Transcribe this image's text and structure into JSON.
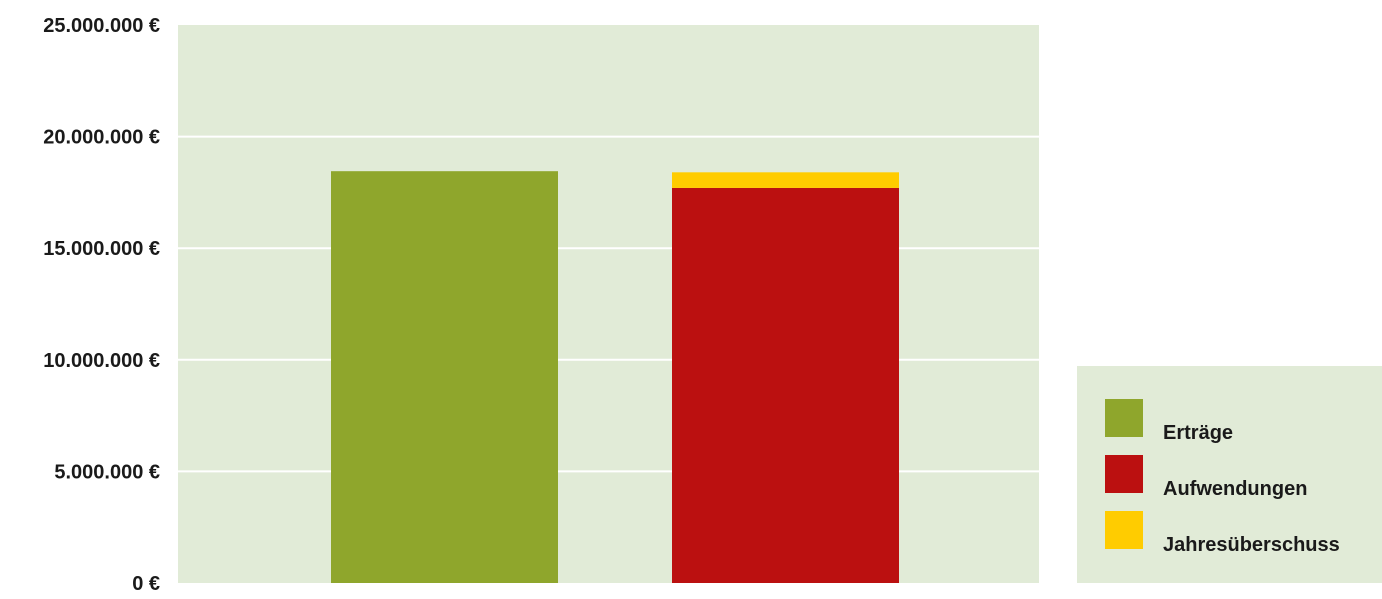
{
  "chart_data": {
    "type": "bar",
    "stacked": true,
    "categories": [
      "",
      ""
    ],
    "series": [
      {
        "name": "Erträge",
        "color": "#8fa62c",
        "values": [
          18450000,
          0
        ]
      },
      {
        "name": "Aufwendungen",
        "color": "#bb1010",
        "values": [
          0,
          17700000
        ]
      },
      {
        "name": "Jahresüberschuss",
        "color": "#ffcc00",
        "values": [
          0,
          700000
        ]
      }
    ],
    "ylim": [
      0,
      25000000
    ],
    "yticks": [
      0,
      5000000,
      10000000,
      15000000,
      20000000,
      25000000
    ],
    "ytick_labels": [
      "0 €",
      "5.000.000 €",
      "10.000.000 €",
      "15.000.000 €",
      "20.000.000 €",
      "25.000.000 €"
    ],
    "grid": true,
    "legend_position": "bottom-right",
    "plot_background": "#e1ebd7",
    "grid_color": "#ffffff"
  }
}
